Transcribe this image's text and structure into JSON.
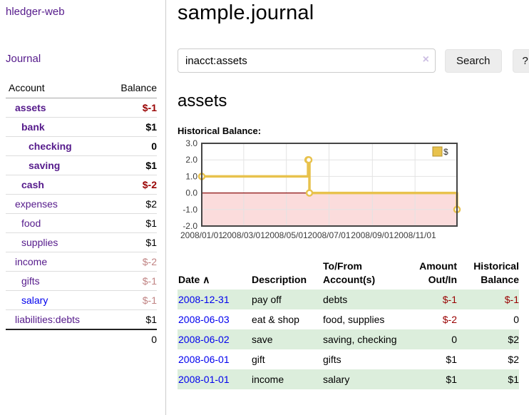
{
  "app": {
    "name": "hledger-web"
  },
  "sidebar": {
    "nav": {
      "journal_label": "Journal"
    },
    "table": {
      "account_header": "Account",
      "balance_header": "Balance",
      "total": "0"
    },
    "accounts": [
      {
        "name": "assets",
        "indent": 1,
        "bold": true,
        "color": "purple",
        "balance": "$-1",
        "balance_class": "neg"
      },
      {
        "name": "bank",
        "indent": 2,
        "bold": true,
        "color": "purple",
        "balance": "$1",
        "balance_class": "pos"
      },
      {
        "name": "checking",
        "indent": 3,
        "bold": true,
        "color": "purple",
        "balance": "0",
        "balance_class": "pos"
      },
      {
        "name": "saving",
        "indent": 3,
        "bold": true,
        "color": "purple",
        "balance": "$1",
        "balance_class": "pos"
      },
      {
        "name": "cash",
        "indent": 2,
        "bold": true,
        "color": "purple",
        "balance": "$-2",
        "balance_class": "neg"
      },
      {
        "name": "expenses",
        "indent": 1,
        "bold": false,
        "color": "purple",
        "balance": "$2",
        "balance_class": "pos"
      },
      {
        "name": "food",
        "indent": 2,
        "bold": false,
        "color": "purple",
        "balance": "$1",
        "balance_class": "pos"
      },
      {
        "name": "supplies",
        "indent": 2,
        "bold": false,
        "color": "purple",
        "balance": "$1",
        "balance_class": "pos"
      },
      {
        "name": "income",
        "indent": 1,
        "bold": false,
        "color": "purple",
        "balance": "$-2",
        "balance_class": "neg-dim"
      },
      {
        "name": "gifts",
        "indent": 2,
        "bold": false,
        "color": "purple",
        "balance": "$-1",
        "balance_class": "neg-dim"
      },
      {
        "name": "salary",
        "indent": 2,
        "bold": false,
        "color": "blue",
        "balance": "$-1",
        "balance_class": "neg-dim"
      },
      {
        "name": "liabilities:debts",
        "indent": 1,
        "bold": false,
        "color": "purple",
        "balance": "$1",
        "balance_class": "pos"
      }
    ]
  },
  "main": {
    "title": "sample.journal",
    "search": {
      "value": "inacct:assets",
      "clear_icon": "×",
      "button_label": "Search",
      "help_label": "?"
    },
    "account_heading": "assets",
    "chart_label": "Historical Balance:"
  },
  "register": {
    "columns": {
      "date": "Date",
      "sort_arrow": "∧",
      "description": "Description",
      "accounts": "To/From Account(s)",
      "amount": "Amount Out/In",
      "balance": "Historical Balance"
    },
    "rows": [
      {
        "date": "2008-12-31",
        "description": "pay off",
        "accounts": "debts",
        "amount": "$-1",
        "amount_neg": true,
        "balance": "$-1",
        "balance_neg": true
      },
      {
        "date": "2008-06-03",
        "description": "eat &amp; shop",
        "accounts": "food, supplies",
        "amount": "$-2",
        "amount_neg": true,
        "balance": "0",
        "balance_neg": false
      },
      {
        "date": "2008-06-02",
        "description": "save",
        "accounts": "saving, checking",
        "amount": "0",
        "amount_neg": false,
        "balance": "$2",
        "balance_neg": false
      },
      {
        "date": "2008-06-01",
        "description": "gift",
        "accounts": "gifts",
        "amount": "$1",
        "amount_neg": false,
        "balance": "$2",
        "balance_neg": false
      },
      {
        "date": "2008-01-01",
        "description": "income",
        "accounts": "salary",
        "amount": "$1",
        "amount_neg": false,
        "balance": "$1",
        "balance_neg": false
      }
    ]
  },
  "chart_data": {
    "type": "line",
    "step": true,
    "title": "Historical Balance",
    "series": [
      {
        "name": "$",
        "color": "#e8c24d",
        "points": [
          [
            "2008-01-01",
            1
          ],
          [
            "2008-06-01",
            2
          ],
          [
            "2008-06-02",
            2
          ],
          [
            "2008-06-03",
            0
          ],
          [
            "2008-12-31",
            -1
          ]
        ]
      }
    ],
    "x_range": [
      "2008-01-01",
      "2008-12-31"
    ],
    "x_ticks": [
      "2008/01/01",
      "2008/03/01",
      "2008/05/01",
      "2008/07/01",
      "2008/09/01",
      "2008/11/01"
    ],
    "y_ticks": [
      3,
      2,
      1,
      0,
      -1,
      -2
    ],
    "ylim": [
      -2,
      3
    ],
    "grid": true,
    "legend": "$",
    "legend_position": "top-right",
    "negative_fill": "#fbdcdc",
    "zero_line_color": "#8b1010",
    "border_color": "#454545",
    "grid_color": "#e3e3e3"
  }
}
